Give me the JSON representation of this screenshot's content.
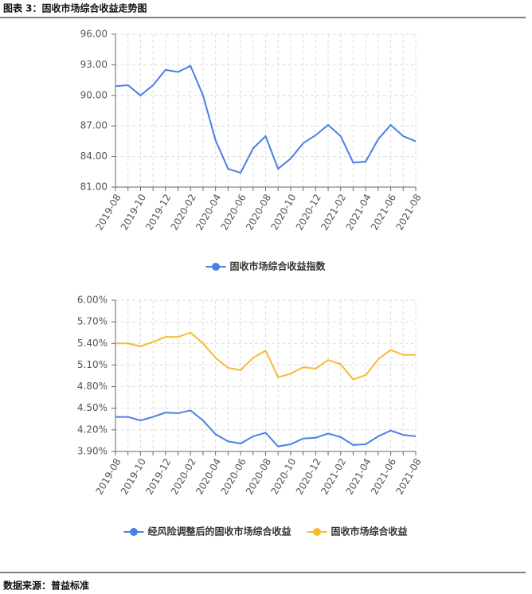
{
  "header": {
    "title": "图表 3：固收市场综合收益走势图"
  },
  "footer": {
    "source": "数据来源：普益标准"
  },
  "chart_data": [
    {
      "type": "line",
      "categories": [
        "2019-08",
        null,
        "2019-10",
        null,
        "2019-12",
        null,
        "2020-02",
        null,
        "2020-04",
        null,
        "2020-06",
        null,
        "2020-08",
        null,
        "2020-10",
        null,
        "2020-12",
        null,
        "2021-02",
        null,
        "2021-04",
        null,
        "2021-06",
        null,
        "2021-08"
      ],
      "series": [
        {
          "name": "固收市场综合收益指数",
          "color": "#4a7fe6",
          "values": [
            90.9,
            91.0,
            90.0,
            91.0,
            92.5,
            92.3,
            92.9,
            90.0,
            85.6,
            82.8,
            82.4,
            84.8,
            86.0,
            82.8,
            83.8,
            85.3,
            86.1,
            87.1,
            86.0,
            83.4,
            83.5,
            85.7,
            87.1,
            86.0,
            85.5
          ]
        }
      ],
      "ylim": [
        81,
        96
      ],
      "yticks": [
        {
          "value": 81,
          "label": "81.00"
        },
        {
          "value": 84,
          "label": "84.00"
        },
        {
          "value": 87,
          "label": "87.00"
        },
        {
          "value": 90,
          "label": "90.00"
        },
        {
          "value": 93,
          "label": "93.00"
        },
        {
          "value": 96,
          "label": "96.00"
        }
      ],
      "grid": true,
      "legend": "bottom"
    },
    {
      "type": "line",
      "categories": [
        "2019-08",
        null,
        "2019-10",
        null,
        "2019-12",
        null,
        "2020-02",
        null,
        "2020-04",
        null,
        "2020-06",
        null,
        "2020-08",
        null,
        "2020-10",
        null,
        "2020-12",
        null,
        "2021-02",
        null,
        "2021-04",
        null,
        "2021-06",
        null,
        "2021-08"
      ],
      "series": [
        {
          "name": "经风险调整后的固收市场综合收益",
          "color": "#4a7fe6",
          "values": [
            4.38,
            4.38,
            4.33,
            4.38,
            4.44,
            4.43,
            4.47,
            4.33,
            4.14,
            4.04,
            4.01,
            4.11,
            4.16,
            3.97,
            4.0,
            4.08,
            4.09,
            4.15,
            4.1,
            3.99,
            4.0,
            4.11,
            4.19,
            4.13,
            4.11
          ]
        },
        {
          "name": "固收市场综合收益",
          "color": "#f5bc32",
          "values": [
            5.4,
            5.4,
            5.36,
            5.42,
            5.49,
            5.49,
            5.55,
            5.4,
            5.2,
            5.06,
            5.03,
            5.2,
            5.3,
            4.93,
            4.98,
            5.07,
            5.05,
            5.17,
            5.11,
            4.9,
            4.96,
            5.18,
            5.31,
            5.24,
            5.24
          ]
        }
      ],
      "ylim": [
        3.9,
        6.0
      ],
      "yticks": [
        {
          "value": 3.9,
          "label": "3.90%"
        },
        {
          "value": 4.2,
          "label": "4.20%"
        },
        {
          "value": 4.5,
          "label": "4.50%"
        },
        {
          "value": 4.8,
          "label": "4.80%"
        },
        {
          "value": 5.1,
          "label": "5.10%"
        },
        {
          "value": 5.4,
          "label": "5.40%"
        },
        {
          "value": 5.7,
          "label": "5.70%"
        },
        {
          "value": 6.0,
          "label": "6.00%"
        }
      ],
      "grid": true,
      "legend": "bottom"
    }
  ]
}
